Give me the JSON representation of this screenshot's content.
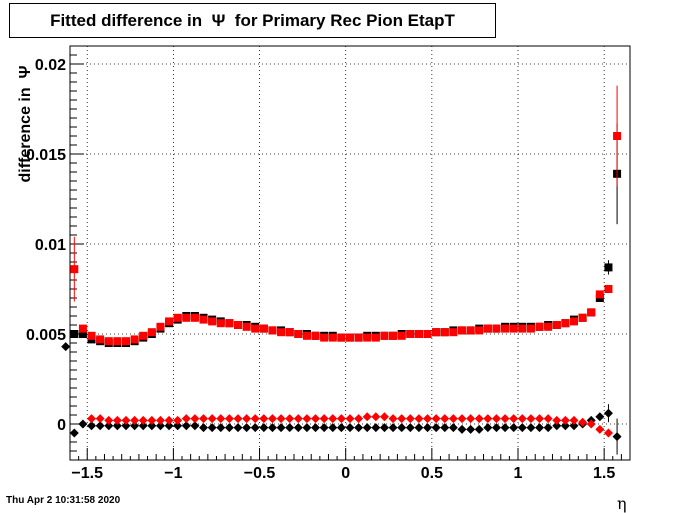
{
  "title": "Fitted difference in  Ψ  for Primary Rec Pion EtapT",
  "timestamp": "Thu Apr  2 10:31:58 2020",
  "chart_data": {
    "type": "scatter",
    "title": "Fitted difference in  Ψ  for Primary Rec Pion EtapT",
    "xlabel": "η",
    "ylabel": "difference in  Ψ",
    "xlim": [
      -1.6,
      1.65
    ],
    "ylim": [
      -0.002,
      0.021
    ],
    "grid": true,
    "x_ticks": [
      -1.5,
      -1,
      -0.5,
      0,
      0.5,
      1,
      1.5
    ],
    "x_tick_labels": [
      "−1.5",
      "−1",
      "−0.5",
      "0",
      "0.5",
      "1",
      "1.5"
    ],
    "y_ticks": [
      0,
      0.005,
      0.01,
      0.015,
      0.02
    ],
    "y_tick_labels": [
      "0",
      "0.005",
      "0.01",
      "0.015",
      "0.02"
    ],
    "colors": {
      "black": "#000000",
      "red": "#ff0000"
    },
    "series": [
      {
        "marker": "square",
        "color": "#000000",
        "x": [
          -1.575,
          -1.525,
          -1.475,
          -1.425,
          -1.375,
          -1.325,
          -1.275,
          -1.225,
          -1.175,
          -1.125,
          -1.075,
          -1.025,
          -0.975,
          -0.925,
          -0.875,
          -0.825,
          -0.775,
          -0.725,
          -0.675,
          -0.625,
          -0.575,
          -0.525,
          -0.475,
          -0.425,
          -0.375,
          -0.325,
          -0.275,
          -0.225,
          -0.175,
          -0.125,
          -0.075,
          -0.025,
          0.025,
          0.075,
          0.125,
          0.175,
          0.225,
          0.275,
          0.325,
          0.375,
          0.425,
          0.475,
          0.525,
          0.575,
          0.625,
          0.675,
          0.725,
          0.775,
          0.825,
          0.875,
          0.925,
          0.975,
          1.025,
          1.075,
          1.125,
          1.175,
          1.225,
          1.275,
          1.325,
          1.375,
          1.425,
          1.475,
          1.525,
          1.575
        ],
        "y": [
          0.005,
          0.005,
          0.0047,
          0.0046,
          0.0045,
          0.0045,
          0.0045,
          0.0046,
          0.0048,
          0.005,
          0.0053,
          0.0056,
          0.0058,
          0.006,
          0.006,
          0.0059,
          0.0058,
          0.0057,
          0.0056,
          0.0055,
          0.0055,
          0.0054,
          0.0053,
          0.0052,
          0.0052,
          0.0051,
          0.005,
          0.005,
          0.0049,
          0.0049,
          0.0049,
          0.0048,
          0.0048,
          0.0048,
          0.0049,
          0.0049,
          0.0049,
          0.0049,
          0.005,
          0.005,
          0.005,
          0.005,
          0.0051,
          0.0051,
          0.0052,
          0.0052,
          0.0052,
          0.0053,
          0.0053,
          0.0053,
          0.0054,
          0.0054,
          0.0054,
          0.0054,
          0.0054,
          0.0055,
          0.0055,
          0.0056,
          0.0058,
          0.0059,
          0.0062,
          0.007,
          0.0087,
          0.0139
        ],
        "err": [
          0,
          0,
          0,
          0,
          0,
          0,
          0,
          0,
          0,
          0,
          0,
          0,
          0,
          0,
          0,
          0,
          0,
          0,
          0,
          0,
          0,
          0,
          0,
          0,
          0,
          0,
          0,
          0,
          0,
          0,
          0,
          0,
          0,
          0,
          0,
          0,
          0,
          0,
          0,
          0,
          0,
          0,
          0,
          0,
          0,
          0,
          0,
          0,
          0,
          0,
          0,
          0,
          0,
          0,
          0,
          0,
          0,
          0,
          0,
          0,
          0,
          0,
          0.0004,
          0.0028
        ]
      },
      {
        "marker": "square",
        "color": "#ff0000",
        "x": [
          -1.575,
          -1.525,
          -1.475,
          -1.425,
          -1.375,
          -1.325,
          -1.275,
          -1.225,
          -1.175,
          -1.125,
          -1.075,
          -1.025,
          -0.975,
          -0.925,
          -0.875,
          -0.825,
          -0.775,
          -0.725,
          -0.675,
          -0.625,
          -0.575,
          -0.525,
          -0.475,
          -0.425,
          -0.375,
          -0.325,
          -0.275,
          -0.225,
          -0.175,
          -0.125,
          -0.075,
          -0.025,
          0.025,
          0.075,
          0.125,
          0.175,
          0.225,
          0.275,
          0.325,
          0.375,
          0.425,
          0.475,
          0.525,
          0.575,
          0.625,
          0.675,
          0.725,
          0.775,
          0.825,
          0.875,
          0.925,
          0.975,
          1.025,
          1.075,
          1.125,
          1.175,
          1.225,
          1.275,
          1.325,
          1.375,
          1.425,
          1.475,
          1.525,
          1.575
        ],
        "y": [
          0.0086,
          0.0053,
          0.0049,
          0.0047,
          0.0046,
          0.0046,
          0.0046,
          0.0047,
          0.0049,
          0.0051,
          0.0054,
          0.0057,
          0.0059,
          0.0059,
          0.0059,
          0.0058,
          0.0057,
          0.0056,
          0.0056,
          0.0055,
          0.0054,
          0.0053,
          0.0053,
          0.0052,
          0.0051,
          0.0051,
          0.005,
          0.0049,
          0.0049,
          0.0048,
          0.0048,
          0.0048,
          0.0048,
          0.0048,
          0.0048,
          0.0048,
          0.0049,
          0.0049,
          0.0049,
          0.005,
          0.005,
          0.005,
          0.0051,
          0.0051,
          0.0051,
          0.0052,
          0.0052,
          0.0052,
          0.0053,
          0.0053,
          0.0053,
          0.0053,
          0.0053,
          0.0053,
          0.0054,
          0.0054,
          0.0055,
          0.0056,
          0.0057,
          0.0059,
          0.0062,
          0.0072,
          0.0075,
          0.016
        ],
        "err": [
          0.0018,
          0,
          0,
          0,
          0,
          0,
          0,
          0,
          0,
          0,
          0,
          0,
          0,
          0,
          0,
          0,
          0,
          0,
          0,
          0,
          0,
          0,
          0,
          0,
          0,
          0,
          0,
          0,
          0,
          0,
          0,
          0,
          0,
          0,
          0,
          0,
          0,
          0,
          0,
          0,
          0,
          0,
          0,
          0,
          0,
          0,
          0,
          0,
          0,
          0,
          0,
          0,
          0,
          0,
          0,
          0,
          0,
          0,
          0,
          0,
          0,
          0,
          0,
          0.0028
        ]
      },
      {
        "marker": "diamond",
        "color": "#000000",
        "x": [
          -1.625,
          -1.575,
          -1.525,
          -1.475,
          -1.425,
          -1.375,
          -1.325,
          -1.275,
          -1.225,
          -1.175,
          -1.125,
          -1.075,
          -1.025,
          -0.975,
          -0.925,
          -0.875,
          -0.825,
          -0.775,
          -0.725,
          -0.675,
          -0.625,
          -0.575,
          -0.525,
          -0.475,
          -0.425,
          -0.375,
          -0.325,
          -0.275,
          -0.225,
          -0.175,
          -0.125,
          -0.075,
          -0.025,
          0.025,
          0.075,
          0.125,
          0.175,
          0.225,
          0.275,
          0.325,
          0.375,
          0.425,
          0.475,
          0.525,
          0.575,
          0.625,
          0.675,
          0.725,
          0.775,
          0.825,
          0.875,
          0.925,
          0.975,
          1.025,
          1.075,
          1.125,
          1.175,
          1.225,
          1.275,
          1.325,
          1.375,
          1.425,
          1.475,
          1.525,
          1.575
        ],
        "y": [
          0.0043,
          -0.0005,
          0.0,
          -0.0001,
          -0.0001,
          -0.0001,
          -0.0001,
          -0.0001,
          -0.0001,
          -0.0001,
          -0.0001,
          -0.0001,
          -0.0001,
          -0.0001,
          -0.0001,
          -0.0001,
          -0.0002,
          -0.0002,
          -0.0002,
          -0.0002,
          -0.0002,
          -0.0002,
          -0.0002,
          -0.0002,
          -0.0002,
          -0.0002,
          -0.0002,
          -0.0002,
          -0.0002,
          -0.0002,
          -0.0002,
          -0.0002,
          -0.0002,
          -0.0002,
          -0.0002,
          -0.0002,
          -0.0002,
          -0.0002,
          -0.0002,
          -0.0002,
          -0.0002,
          -0.0002,
          -0.0002,
          -0.0002,
          -0.0002,
          -0.0002,
          -0.0003,
          -0.0003,
          -0.0003,
          -0.0002,
          -0.0002,
          -0.0002,
          -0.0002,
          -0.0002,
          -0.0002,
          -0.0002,
          -0.0002,
          -0.0001,
          -0.0001,
          -0.0001,
          0.0,
          0.0002,
          0.0004,
          0.0006,
          -0.0007
        ],
        "err": [
          0,
          0,
          0,
          0,
          0,
          0,
          0,
          0,
          0,
          0,
          0,
          0,
          0,
          0,
          0,
          0,
          0,
          0,
          0,
          0,
          0,
          0,
          0,
          0,
          0,
          0,
          0,
          0,
          0,
          0,
          0,
          0,
          0,
          0,
          0,
          0,
          0,
          0,
          0,
          0,
          0,
          0,
          0,
          0,
          0,
          0,
          0,
          0,
          0,
          0,
          0,
          0,
          0,
          0,
          0,
          0,
          0,
          0,
          0,
          0,
          0,
          0,
          0,
          0.0005,
          0.001
        ]
      },
      {
        "marker": "diamond",
        "color": "#ff0000",
        "x": [
          -1.475,
          -1.425,
          -1.375,
          -1.325,
          -1.275,
          -1.225,
          -1.175,
          -1.125,
          -1.075,
          -1.025,
          -0.975,
          -0.925,
          -0.875,
          -0.825,
          -0.775,
          -0.725,
          -0.675,
          -0.625,
          -0.575,
          -0.525,
          -0.475,
          -0.425,
          -0.375,
          -0.325,
          -0.275,
          -0.225,
          -0.175,
          -0.125,
          -0.075,
          -0.025,
          0.025,
          0.075,
          0.125,
          0.175,
          0.225,
          0.275,
          0.325,
          0.375,
          0.425,
          0.475,
          0.525,
          0.575,
          0.625,
          0.675,
          0.725,
          0.775,
          0.825,
          0.875,
          0.925,
          0.975,
          1.025,
          1.075,
          1.125,
          1.175,
          1.225,
          1.275,
          1.325,
          1.375,
          1.425,
          1.475,
          1.525
        ],
        "y": [
          0.0003,
          0.0003,
          0.0002,
          0.0002,
          0.0002,
          0.0002,
          0.0002,
          0.0002,
          0.0002,
          0.0002,
          0.0002,
          0.0003,
          0.0003,
          0.0003,
          0.0003,
          0.0003,
          0.0003,
          0.0003,
          0.0003,
          0.0003,
          0.0003,
          0.0003,
          0.0003,
          0.0003,
          0.0003,
          0.0003,
          0.0003,
          0.0003,
          0.0003,
          0.0003,
          0.0003,
          0.0003,
          0.0004,
          0.0004,
          0.0004,
          0.0003,
          0.0003,
          0.0003,
          0.0003,
          0.0003,
          0.0003,
          0.0003,
          0.0003,
          0.0003,
          0.0003,
          0.0003,
          0.0003,
          0.0003,
          0.0003,
          0.0003,
          0.0003,
          0.0003,
          0.0003,
          0.0003,
          0.0002,
          0.0002,
          0.0002,
          0.0001,
          0.0,
          -0.0003,
          -0.0005
        ],
        "err": []
      }
    ]
  }
}
